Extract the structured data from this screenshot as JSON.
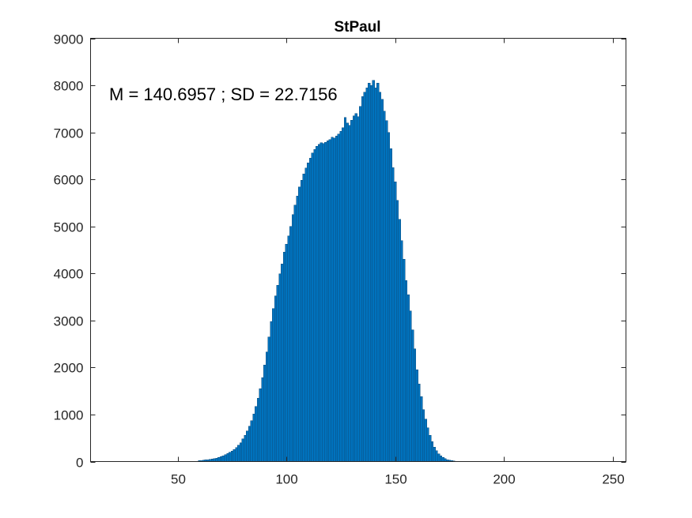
{
  "chart_data": {
    "type": "bar",
    "title": "StPaul",
    "annotation": "M = 140.6957 ; SD = 22.7156",
    "xlabel": "",
    "ylabel": "",
    "xlim": [
      10,
      256
    ],
    "ylim": [
      0,
      9000
    ],
    "x_ticks": [
      50,
      100,
      150,
      200,
      250
    ],
    "y_ticks": [
      0,
      1000,
      2000,
      3000,
      4000,
      5000,
      6000,
      7000,
      8000,
      9000
    ],
    "bar_color": "#0072BD",
    "grid": false,
    "bin_width": 1,
    "bins": {
      "x_start": 50,
      "values": [
        0,
        0,
        0,
        0,
        0,
        0,
        0,
        0,
        0,
        0,
        20,
        25,
        30,
        35,
        40,
        45,
        55,
        65,
        75,
        90,
        105,
        125,
        145,
        170,
        195,
        225,
        260,
        300,
        350,
        400,
        480,
        560,
        650,
        750,
        870,
        1010,
        1170,
        1350,
        1550,
        1780,
        2050,
        2330,
        2650,
        2980,
        3250,
        3520,
        3750,
        3990,
        4200,
        4450,
        4620,
        4800,
        5000,
        5250,
        5450,
        5650,
        5840,
        5980,
        6120,
        6240,
        6350,
        6450,
        6560,
        6640,
        6700,
        6750,
        6780,
        6760,
        6790,
        6820,
        6850,
        6900,
        6880,
        6920,
        6960,
        7020,
        7100,
        7320,
        7200,
        7150,
        7260,
        7350,
        7400,
        7330,
        7550,
        7760,
        7850,
        7950,
        8050,
        8000,
        8110,
        7950,
        8050,
        7850,
        7700,
        7450,
        7250,
        7000,
        6650,
        6250,
        5950,
        5550,
        5150,
        4700,
        4300,
        3850,
        3550,
        3200,
        2800,
        2400,
        1950,
        1650,
        1380,
        1100,
        900,
        720,
        560,
        420,
        310,
        230,
        165,
        120,
        85,
        60,
        40,
        28,
        18,
        12,
        8,
        5,
        3,
        2,
        1,
        0,
        0,
        0,
        0,
        0,
        0,
        0,
        0,
        0,
        0,
        0,
        0,
        0,
        0,
        0,
        0,
        0
      ]
    }
  }
}
